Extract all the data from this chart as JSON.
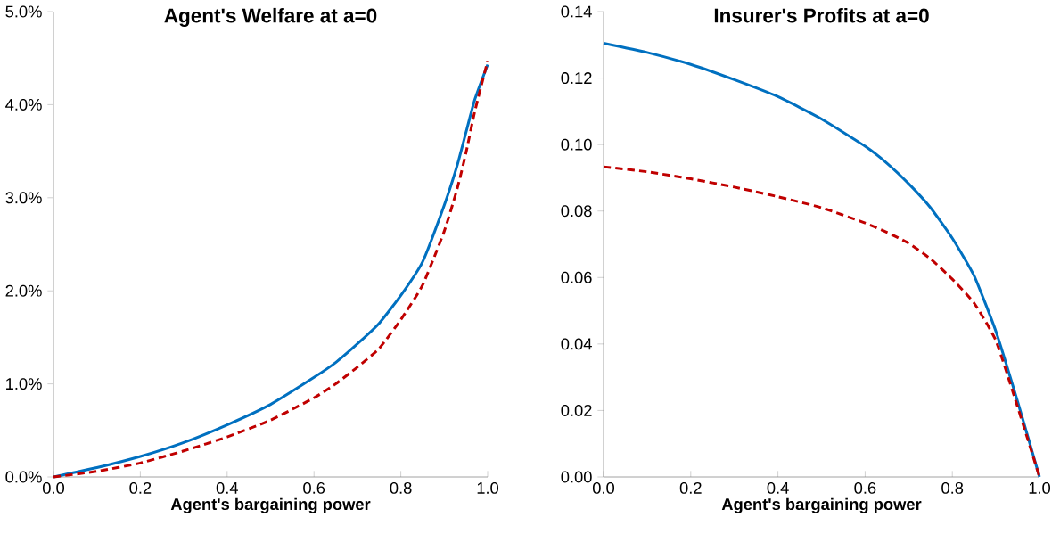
{
  "chart_data": [
    {
      "type": "line",
      "title": "Agent's Welfare at a=0",
      "xlabel": "Agent's bargaining power",
      "x": [
        0,
        0.1,
        0.2,
        0.3,
        0.4,
        0.5,
        0.6,
        0.65,
        0.7,
        0.75,
        0.8,
        0.85,
        0.9,
        0.93,
        0.95,
        0.97,
        1.0
      ],
      "series": [
        {
          "color": "#0070c0",
          "line_style": "solid",
          "values": [
            0,
            0.1,
            0.22,
            0.37,
            0.56,
            0.78,
            1.07,
            1.23,
            1.43,
            1.65,
            1.95,
            2.31,
            2.92,
            3.35,
            3.7,
            4.05,
            4.43
          ]
        },
        {
          "color": "#c00000",
          "line_style": "dashed",
          "values": [
            0,
            0.06,
            0.15,
            0.28,
            0.43,
            0.61,
            0.85,
            1.0,
            1.18,
            1.38,
            1.69,
            2.06,
            2.64,
            3.1,
            3.48,
            3.92,
            4.47
          ]
        }
      ],
      "xlim": [
        0,
        1
      ],
      "ylim": [
        0,
        5
      ],
      "xticks": [
        {
          "value": 0,
          "label": "0.0"
        },
        {
          "value": 0.2,
          "label": "0.2"
        },
        {
          "value": 0.4,
          "label": "0.4"
        },
        {
          "value": 0.6,
          "label": "0.6"
        },
        {
          "value": 0.8,
          "label": "0.8"
        },
        {
          "value": 1,
          "label": "1.0"
        }
      ],
      "yticks": [
        {
          "value": 0,
          "label": "0.0%"
        },
        {
          "value": 1,
          "label": "1.0%"
        },
        {
          "value": 2,
          "label": "2.0%"
        },
        {
          "value": 3,
          "label": "3.0%"
        },
        {
          "value": 4,
          "label": "4.0%"
        },
        {
          "value": 5,
          "label": "5.0%"
        }
      ]
    },
    {
      "type": "line",
      "title": "Insurer's Profits at a=0",
      "xlabel": "Agent's bargaining power",
      "x": [
        0,
        0.1,
        0.2,
        0.3,
        0.4,
        0.5,
        0.6,
        0.65,
        0.7,
        0.75,
        0.8,
        0.85,
        0.9,
        0.95,
        1.0
      ],
      "series": [
        {
          "color": "#0070c0",
          "line_style": "solid",
          "values": [
            0.1305,
            0.1277,
            0.1241,
            0.1195,
            0.1144,
            0.1077,
            0.0995,
            0.0944,
            0.0882,
            0.081,
            0.0718,
            0.0605,
            0.0438,
            0.0226,
            0
          ]
        },
        {
          "color": "#c00000",
          "line_style": "dashed",
          "values": [
            0.0933,
            0.0918,
            0.0897,
            0.0872,
            0.0843,
            0.081,
            0.0764,
            0.0736,
            0.0703,
            0.0656,
            0.0595,
            0.0523,
            0.041,
            0.021,
            0
          ]
        }
      ],
      "xlim": [
        0,
        1
      ],
      "ylim": [
        0,
        0.14
      ],
      "xticks": [
        {
          "value": 0,
          "label": "0.0"
        },
        {
          "value": 0.2,
          "label": "0.2"
        },
        {
          "value": 0.4,
          "label": "0.4"
        },
        {
          "value": 0.6,
          "label": "0.6"
        },
        {
          "value": 0.8,
          "label": "0.8"
        },
        {
          "value": 1,
          "label": "1.0"
        }
      ],
      "yticks": [
        {
          "value": 0,
          "label": "0.00"
        },
        {
          "value": 0.02,
          "label": "0.02"
        },
        {
          "value": 0.04,
          "label": "0.04"
        },
        {
          "value": 0.06,
          "label": "0.06"
        },
        {
          "value": 0.08,
          "label": "0.08"
        },
        {
          "value": 0.1,
          "label": "0.10"
        },
        {
          "value": 0.12,
          "label": "0.12"
        },
        {
          "value": 0.14,
          "label": "0.14"
        }
      ]
    }
  ]
}
